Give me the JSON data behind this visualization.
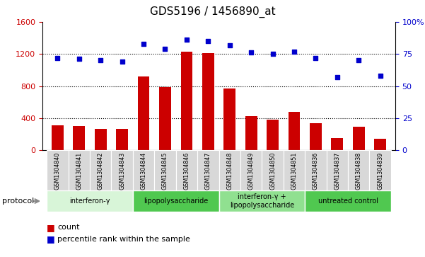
{
  "title": "GDS5196 / 1456890_at",
  "samples": [
    "GSM1304840",
    "GSM1304841",
    "GSM1304842",
    "GSM1304843",
    "GSM1304844",
    "GSM1304845",
    "GSM1304846",
    "GSM1304847",
    "GSM1304848",
    "GSM1304849",
    "GSM1304850",
    "GSM1304851",
    "GSM1304836",
    "GSM1304837",
    "GSM1304838",
    "GSM1304839"
  ],
  "counts": [
    310,
    300,
    270,
    265,
    920,
    790,
    1230,
    1210,
    770,
    430,
    380,
    480,
    340,
    155,
    290,
    145
  ],
  "percentiles": [
    72,
    71,
    70,
    69,
    83,
    79,
    86,
    85,
    82,
    76,
    75,
    77,
    72,
    57,
    70,
    58
  ],
  "groups": [
    {
      "label": "interferon-γ",
      "start": 0,
      "end": 4,
      "color": "#d8f5d8"
    },
    {
      "label": "lipopolysaccharide",
      "start": 4,
      "end": 8,
      "color": "#50c850"
    },
    {
      "label": "interferon-γ +\nlipopolysaccharide",
      "start": 8,
      "end": 12,
      "color": "#90e090"
    },
    {
      "label": "untreated control",
      "start": 12,
      "end": 16,
      "color": "#50c850"
    }
  ],
  "left_ylim": [
    0,
    1600
  ],
  "right_ylim": [
    0,
    100
  ],
  "left_yticks": [
    0,
    400,
    800,
    1200,
    1600
  ],
  "right_yticks": [
    0,
    25,
    50,
    75,
    100
  ],
  "right_yticklabels": [
    "0",
    "25",
    "50",
    "75",
    "100%"
  ],
  "gridlines": [
    400,
    800,
    1200
  ],
  "bar_color": "#cc0000",
  "dot_color": "#0000cc",
  "bar_width": 0.55,
  "legend_count_label": "count",
  "legend_pct_label": "percentile rank within the sample",
  "protocol_label": "protocol",
  "sample_box_color": "#d8d8d8",
  "title_fontsize": 11,
  "axis_fontsize": 8,
  "label_fontsize": 5.8
}
